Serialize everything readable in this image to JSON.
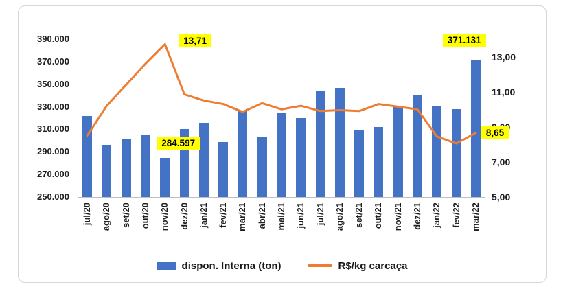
{
  "chart_data": {
    "type": "combo",
    "categories": [
      "jul/20",
      "ago/20",
      "set/20",
      "out/20",
      "nov/20",
      "dez/20",
      "jan/21",
      "fev/21",
      "mar/21",
      "abr/21",
      "mai/21",
      "jun/21",
      "jul/21",
      "ago/21",
      "set/21",
      "out/21",
      "nov/21",
      "dez/21",
      "jan/22",
      "fev/22",
      "mar/22"
    ],
    "series": [
      {
        "name": "dispon. Interna (ton)",
        "type": "bar",
        "axis": "left",
        "color": "#4472C4",
        "values": [
          322000,
          296000,
          301000,
          305000,
          284597,
          310000,
          316000,
          299000,
          326000,
          303000,
          325000,
          320000,
          344000,
          347000,
          309000,
          312000,
          331000,
          340000,
          331000,
          328000,
          371131
        ]
      },
      {
        "name": "R$/kg carcaça",
        "type": "line",
        "axis": "right",
        "color": "#ED7D31",
        "values": [
          8.5,
          10.2,
          11.4,
          12.6,
          13.71,
          10.85,
          10.5,
          10.3,
          9.85,
          10.35,
          10.0,
          10.2,
          9.9,
          9.95,
          9.9,
          10.3,
          10.15,
          10.0,
          8.45,
          8.05,
          8.65
        ]
      }
    ],
    "left_axis": {
      "min": 250000,
      "max": 390000,
      "tick_values": [
        390000,
        370000,
        350000,
        330000,
        310000,
        290000,
        270000,
        250000
      ],
      "tick_labels": [
        "390.000",
        "370.000",
        "350.000",
        "330.000",
        "310.000",
        "290.000",
        "270.000",
        "250.000"
      ]
    },
    "right_axis": {
      "min": 5,
      "max": 14,
      "tick_values": [
        13,
        11,
        9,
        7,
        5
      ],
      "tick_labels": [
        "13,00",
        "11,00",
        "9,00",
        "7,00",
        "5,00"
      ]
    },
    "annotations": [
      {
        "label": "13,71",
        "series": "R$/kg carcaça",
        "category": "nov/20"
      },
      {
        "label": "284.597",
        "series": "dispon. Interna (ton)",
        "category": "nov/20"
      },
      {
        "label": "371.131",
        "series": "dispon. Interna (ton)",
        "category": "mar/22"
      },
      {
        "label": "8,65",
        "series": "R$/kg carcaça",
        "category": "mar/22"
      }
    ],
    "legend": [
      {
        "label": "dispon. Interna (ton)",
        "swatch": "bar",
        "color": "#4472C4"
      },
      {
        "label": "R$/kg carcaça",
        "swatch": "line",
        "color": "#ED7D31"
      }
    ],
    "grid": false,
    "legend_position": "bottom",
    "annotation_highlight_color": "#FFFF00"
  }
}
